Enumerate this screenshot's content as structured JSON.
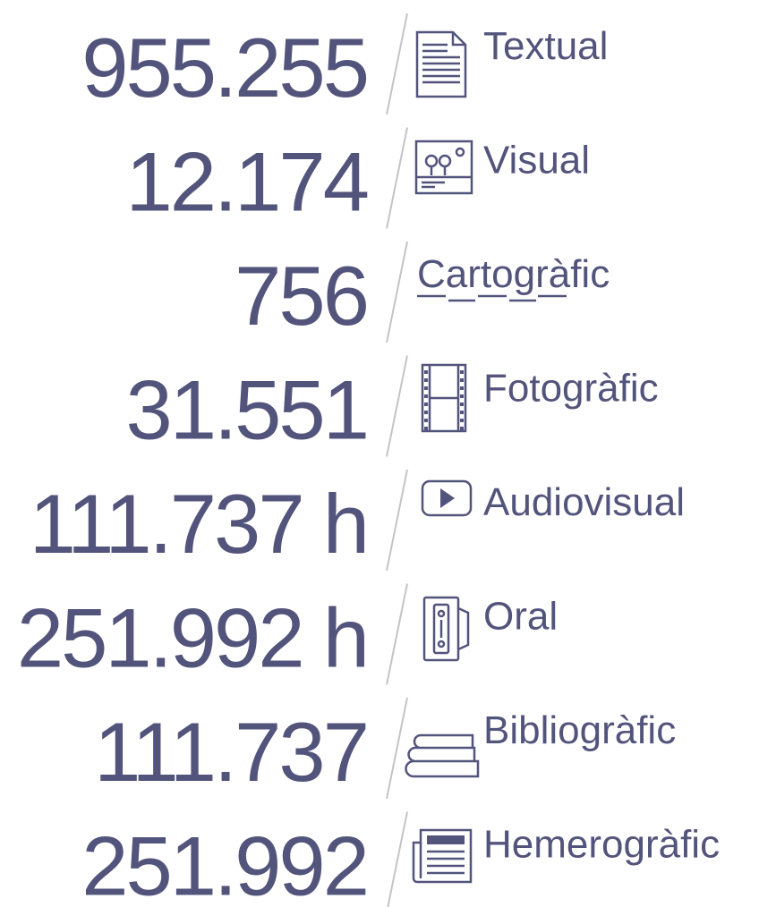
{
  "items": [
    {
      "value": "955.255",
      "label": "Textual"
    },
    {
      "value": "12.174",
      "label": "Visual"
    },
    {
      "value": "756",
      "label": "Cartogràfic"
    },
    {
      "value": "31.551",
      "label": "Fotogràfic"
    },
    {
      "value": "111.737 h",
      "label": "Audiovisual"
    },
    {
      "value": "251.992 h",
      "label": "Oral"
    },
    {
      "value": "111.737",
      "label": "Bibliogràfic"
    },
    {
      "value": "251.992",
      "label": "Hemerogràfic"
    }
  ]
}
